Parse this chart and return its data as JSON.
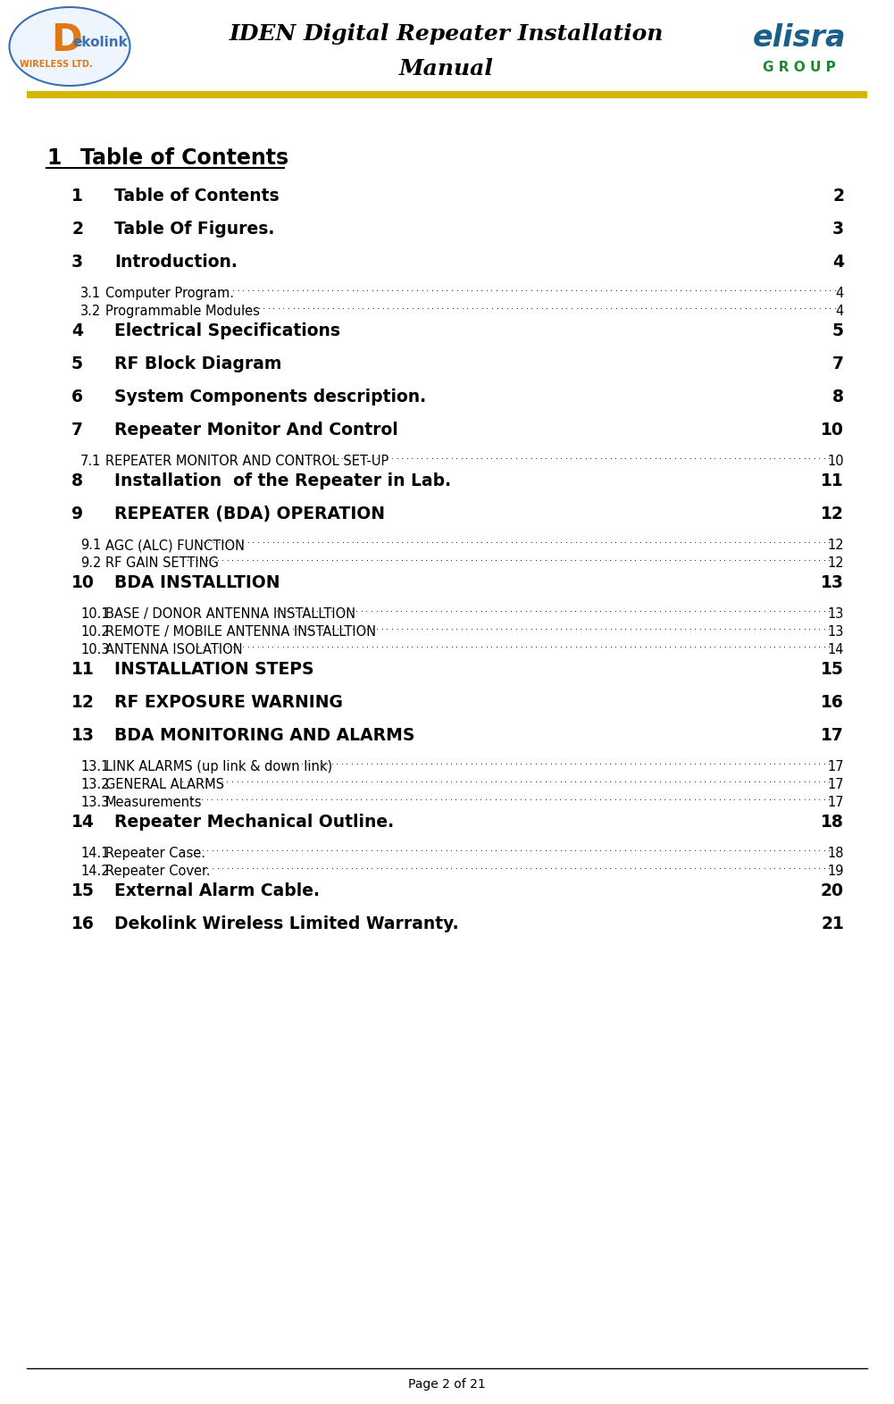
{
  "page_title_line1": "IDEN Digital Repeater Installation",
  "page_title_line2": "Manual",
  "header_bar_color": "#D4B800",
  "bg_color": "#FFFFFF",
  "toc_entries": [
    {
      "num": "1",
      "title": "Table of Contents",
      "page": "2",
      "level": 1
    },
    {
      "num": "2",
      "title": "Table Of Figures.",
      "page": "3",
      "level": 1
    },
    {
      "num": "3",
      "title": "Introduction.",
      "page": "4",
      "level": 1
    },
    {
      "num": "3.1",
      "title": "Computer Program. ",
      "page": "4",
      "level": 2
    },
    {
      "num": "3.2",
      "title": "Programmable Modules ",
      "page": "4",
      "level": 2
    },
    {
      "num": "4",
      "title": "Electrical Specifications",
      "page": "5",
      "level": 1
    },
    {
      "num": "5",
      "title": "RF Block Diagram",
      "page": "7",
      "level": 1
    },
    {
      "num": "6",
      "title": "System Components description.",
      "page": "8",
      "level": 1
    },
    {
      "num": "7",
      "title": "Repeater Monitor And Control",
      "page": "10",
      "level": 1
    },
    {
      "num": "7.1",
      "title": "REPEATER MONITOR AND CONTROL SET-UP",
      "page": "10",
      "level": 2
    },
    {
      "num": "8",
      "title": "Installation  of the Repeater in Lab.",
      "page": "11",
      "level": 1
    },
    {
      "num": "9",
      "title": "REPEATER (BDA) OPERATION",
      "page": "12",
      "level": 1
    },
    {
      "num": "9.1",
      "title": "AGC (ALC) FUNCTION",
      "page": "12",
      "level": 2
    },
    {
      "num": "9.2",
      "title": "RF GAIN SETTING ",
      "page": "12",
      "level": 2
    },
    {
      "num": "10",
      "title": "BDA INSTALLTION",
      "page": "13",
      "level": 1
    },
    {
      "num": "10.1",
      "title": "BASE / DONOR ANTENNA INSTALLTION",
      "page": "13",
      "level": 2
    },
    {
      "num": "10.2",
      "title": "REMOTE / MOBILE ANTENNA INSTALLTION",
      "page": "13",
      "level": 2
    },
    {
      "num": "10.3",
      "title": "ANTENNA ISOLATION ",
      "page": "14",
      "level": 2
    },
    {
      "num": "11",
      "title": "INSTALLATION STEPS",
      "page": "15",
      "level": 1
    },
    {
      "num": "12",
      "title": "RF EXPOSURE WARNING",
      "page": "16",
      "level": 1
    },
    {
      "num": "13",
      "title": "BDA MONITORING AND ALARMS",
      "page": "17",
      "level": 1
    },
    {
      "num": "13.1",
      "title": "LINK ALARMS (up link & down link)",
      "page": "17",
      "level": 2
    },
    {
      "num": "13.2",
      "title": "GENERAL ALARMS",
      "page": "17",
      "level": 2
    },
    {
      "num": "13.3",
      "title": "Measurements",
      "page": "17",
      "level": 2
    },
    {
      "num": "14",
      "title": "Repeater Mechanical Outline.",
      "page": "18",
      "level": 1
    },
    {
      "num": "14.1",
      "title": "Repeater Case. ",
      "page": "18",
      "level": 2
    },
    {
      "num": "14.2",
      "title": "Repeater Cover. ",
      "page": "19",
      "level": 2
    },
    {
      "num": "15",
      "title": "External Alarm Cable.",
      "page": "20",
      "level": 1
    },
    {
      "num": "16",
      "title": "Dekolink Wireless Limited Warranty.",
      "page": "21",
      "level": 1
    }
  ],
  "footer_text": "Page 2 of 21",
  "footer_line_color": "#000000",
  "text_color": "#000000"
}
